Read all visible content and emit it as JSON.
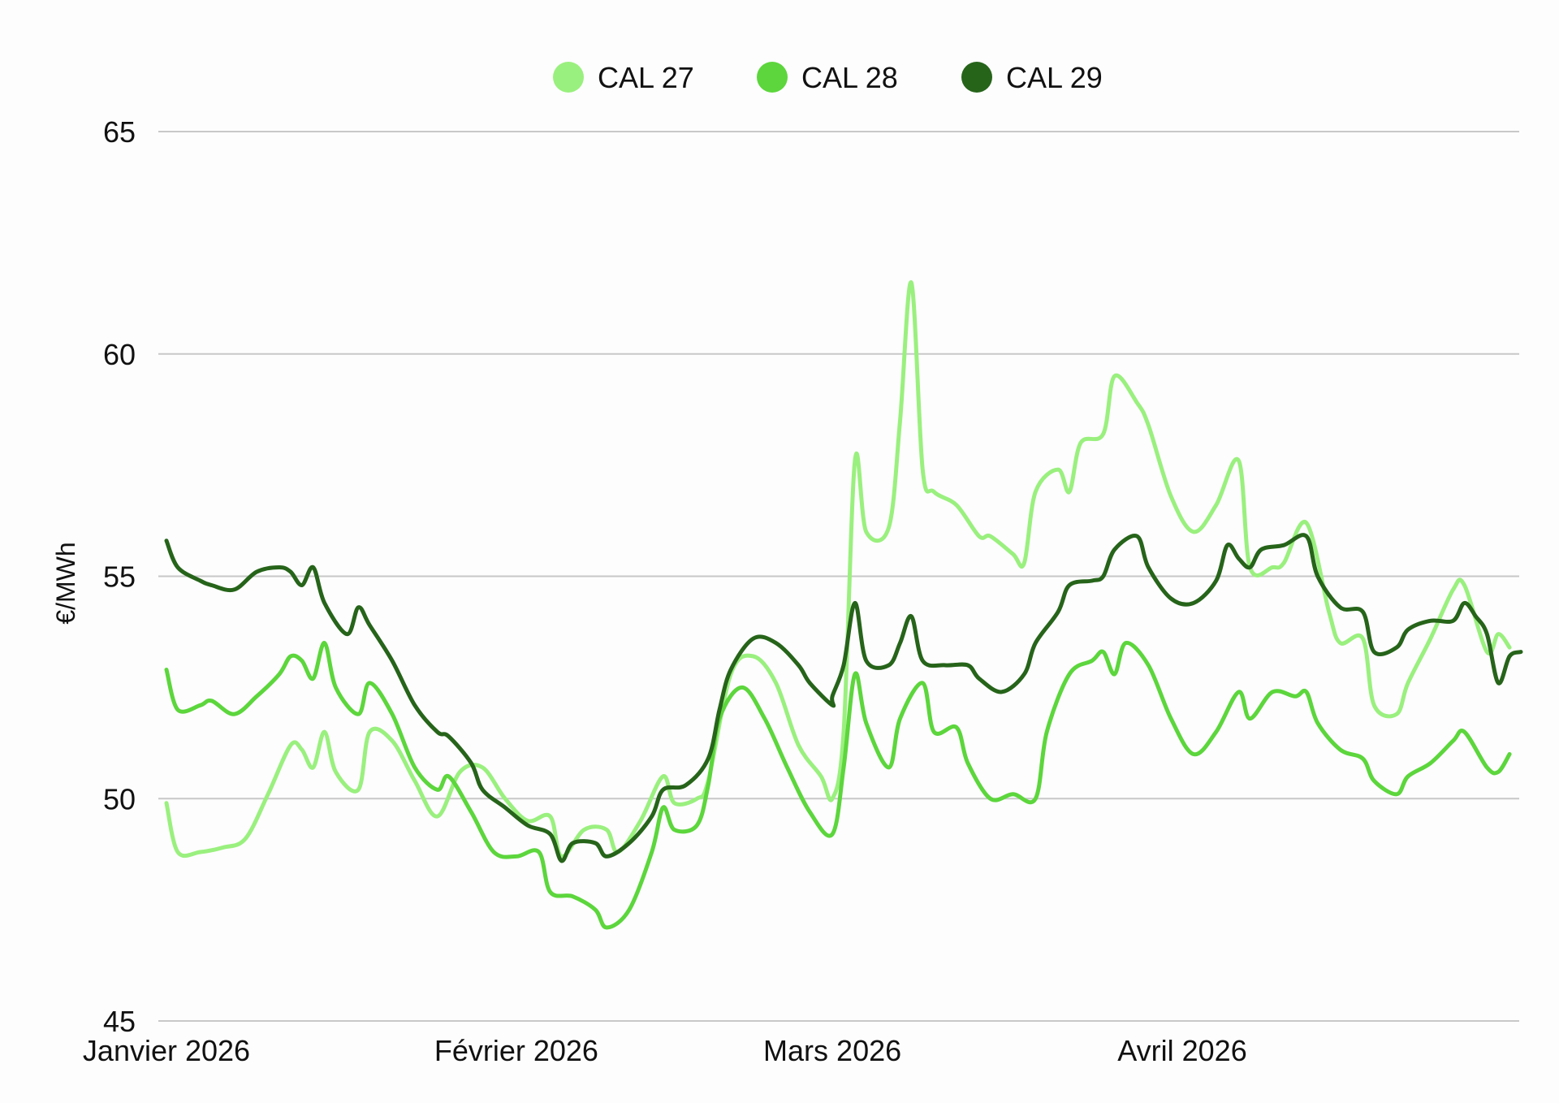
{
  "chart_data": {
    "type": "line",
    "ylabel": "€/MWh",
    "ylim": [
      45,
      65
    ],
    "yticks": [
      45,
      50,
      55,
      60,
      65
    ],
    "xlim": [
      "2026-01-01",
      "2026-04-30"
    ],
    "xticks": [
      {
        "date": "2026-01-01",
        "label": "Janvier 2026"
      },
      {
        "date": "2026-02-01",
        "label": "Février 2026"
      },
      {
        "date": "2026-03-01",
        "label": "Mars 2026"
      },
      {
        "date": "2026-04-01",
        "label": "Avril 2026"
      }
    ],
    "grid": true,
    "legend": "top-center",
    "series": [
      {
        "name": "CAL 27",
        "color": "#9af07e",
        "points": [
          [
            "2026-01-01",
            49.9
          ],
          [
            "2026-01-02",
            48.8
          ],
          [
            "2026-01-04",
            48.8
          ],
          [
            "2026-01-06",
            48.9
          ],
          [
            "2026-01-08",
            49.1
          ],
          [
            "2026-01-10",
            50.1
          ],
          [
            "2026-01-12",
            51.2
          ],
          [
            "2026-01-13",
            51.1
          ],
          [
            "2026-01-14",
            50.7
          ],
          [
            "2026-01-15",
            51.5
          ],
          [
            "2026-01-16",
            50.6
          ],
          [
            "2026-01-18",
            50.2
          ],
          [
            "2026-01-19",
            51.5
          ],
          [
            "2026-01-21",
            51.3
          ],
          [
            "2026-01-23",
            50.4
          ],
          [
            "2026-01-25",
            49.6
          ],
          [
            "2026-01-27",
            50.6
          ],
          [
            "2026-01-29",
            50.7
          ],
          [
            "2026-01-31",
            50.0
          ],
          [
            "2026-02-02",
            49.5
          ],
          [
            "2026-02-04",
            49.6
          ],
          [
            "2026-02-05",
            48.7
          ],
          [
            "2026-02-07",
            49.3
          ],
          [
            "2026-02-09",
            49.3
          ],
          [
            "2026-02-10",
            48.8
          ],
          [
            "2026-02-12",
            49.5
          ],
          [
            "2026-02-14",
            50.5
          ],
          [
            "2026-02-15",
            49.9
          ],
          [
            "2026-02-17",
            50.0
          ],
          [
            "2026-02-18",
            50.4
          ],
          [
            "2026-02-20",
            52.8
          ],
          [
            "2026-02-22",
            53.2
          ],
          [
            "2026-02-24",
            52.6
          ],
          [
            "2026-02-26",
            51.2
          ],
          [
            "2026-02-28",
            50.5
          ],
          [
            "2026-03-01",
            50.0
          ],
          [
            "2026-03-02",
            51.5
          ],
          [
            "2026-03-03",
            57.6
          ],
          [
            "2026-03-04",
            56.0
          ],
          [
            "2026-03-06",
            56.1
          ],
          [
            "2026-03-07",
            58.5
          ],
          [
            "2026-03-08",
            61.6
          ],
          [
            "2026-03-09",
            57.4
          ],
          [
            "2026-03-10",
            56.9
          ],
          [
            "2026-03-12",
            56.6
          ],
          [
            "2026-03-14",
            55.9
          ],
          [
            "2026-03-15",
            55.9
          ],
          [
            "2026-03-17",
            55.5
          ],
          [
            "2026-03-18",
            55.3
          ],
          [
            "2026-03-19",
            56.9
          ],
          [
            "2026-03-21",
            57.4
          ],
          [
            "2026-03-22",
            56.9
          ],
          [
            "2026-03-23",
            58.0
          ],
          [
            "2026-03-25",
            58.2
          ],
          [
            "2026-03-26",
            59.5
          ],
          [
            "2026-03-28",
            58.9
          ],
          [
            "2026-03-29",
            58.4
          ],
          [
            "2026-03-31",
            56.8
          ],
          [
            "2026-04-02",
            56.0
          ],
          [
            "2026-04-04",
            56.6
          ],
          [
            "2026-04-06",
            57.6
          ],
          [
            "2026-04-07",
            55.2
          ],
          [
            "2026-04-09",
            55.2
          ],
          [
            "2026-04-10",
            55.3
          ],
          [
            "2026-04-12",
            56.2
          ],
          [
            "2026-04-14",
            54.2
          ],
          [
            "2026-04-15",
            53.5
          ],
          [
            "2026-04-17",
            53.6
          ],
          [
            "2026-04-18",
            52.1
          ],
          [
            "2026-04-20",
            51.9
          ],
          [
            "2026-04-21",
            52.6
          ],
          [
            "2026-04-23",
            53.6
          ],
          [
            "2026-04-25",
            54.7
          ],
          [
            "2026-04-26",
            54.8
          ],
          [
            "2026-04-28",
            53.3
          ],
          [
            "2026-04-29",
            53.7
          ],
          [
            "2026-04-30",
            53.4
          ]
        ]
      },
      {
        "name": "CAL 28",
        "color": "#5cd63c",
        "points": [
          [
            "2026-01-01",
            52.9
          ],
          [
            "2026-01-02",
            52.0
          ],
          [
            "2026-01-04",
            52.1
          ],
          [
            "2026-01-05",
            52.2
          ],
          [
            "2026-01-07",
            51.9
          ],
          [
            "2026-01-09",
            52.3
          ],
          [
            "2026-01-11",
            52.8
          ],
          [
            "2026-01-12",
            53.2
          ],
          [
            "2026-01-13",
            53.1
          ],
          [
            "2026-01-14",
            52.7
          ],
          [
            "2026-01-15",
            53.5
          ],
          [
            "2026-01-16",
            52.5
          ],
          [
            "2026-01-18",
            51.9
          ],
          [
            "2026-01-19",
            52.6
          ],
          [
            "2026-01-21",
            51.9
          ],
          [
            "2026-01-23",
            50.7
          ],
          [
            "2026-01-25",
            50.2
          ],
          [
            "2026-01-26",
            50.5
          ],
          [
            "2026-01-28",
            49.7
          ],
          [
            "2026-01-30",
            48.8
          ],
          [
            "2026-02-01",
            48.7
          ],
          [
            "2026-02-03",
            48.8
          ],
          [
            "2026-02-04",
            47.9
          ],
          [
            "2026-02-06",
            47.8
          ],
          [
            "2026-02-08",
            47.5
          ],
          [
            "2026-02-09",
            47.1
          ],
          [
            "2026-02-11",
            47.5
          ],
          [
            "2026-02-13",
            48.8
          ],
          [
            "2026-02-14",
            49.8
          ],
          [
            "2026-02-15",
            49.3
          ],
          [
            "2026-02-17",
            49.4
          ],
          [
            "2026-02-18",
            50.3
          ],
          [
            "2026-02-19",
            51.8
          ],
          [
            "2026-02-21",
            52.5
          ],
          [
            "2026-02-23",
            51.8
          ],
          [
            "2026-02-25",
            50.7
          ],
          [
            "2026-02-27",
            49.7
          ],
          [
            "2026-03-01",
            49.2
          ],
          [
            "2026-03-02",
            50.7
          ],
          [
            "2026-03-03",
            52.8
          ],
          [
            "2026-03-04",
            51.7
          ],
          [
            "2026-03-06",
            50.7
          ],
          [
            "2026-03-07",
            51.8
          ],
          [
            "2026-03-09",
            52.6
          ],
          [
            "2026-03-10",
            51.5
          ],
          [
            "2026-03-12",
            51.6
          ],
          [
            "2026-03-13",
            50.8
          ],
          [
            "2026-03-15",
            50.0
          ],
          [
            "2026-03-17",
            50.1
          ],
          [
            "2026-03-19",
            50.0
          ],
          [
            "2026-03-20",
            51.5
          ],
          [
            "2026-03-22",
            52.8
          ],
          [
            "2026-03-24",
            53.1
          ],
          [
            "2026-03-25",
            53.3
          ],
          [
            "2026-03-26",
            52.8
          ],
          [
            "2026-03-27",
            53.5
          ],
          [
            "2026-03-29",
            53.0
          ],
          [
            "2026-03-31",
            51.8
          ],
          [
            "2026-04-02",
            51.0
          ],
          [
            "2026-04-04",
            51.5
          ],
          [
            "2026-04-06",
            52.4
          ],
          [
            "2026-04-07",
            51.8
          ],
          [
            "2026-04-09",
            52.4
          ],
          [
            "2026-04-11",
            52.3
          ],
          [
            "2026-04-12",
            52.4
          ],
          [
            "2026-04-13",
            51.7
          ],
          [
            "2026-04-15",
            51.1
          ],
          [
            "2026-04-17",
            50.9
          ],
          [
            "2026-04-18",
            50.4
          ],
          [
            "2026-04-20",
            50.1
          ],
          [
            "2026-04-21",
            50.5
          ],
          [
            "2026-04-23",
            50.8
          ],
          [
            "2026-04-25",
            51.3
          ],
          [
            "2026-04-26",
            51.5
          ],
          [
            "2026-04-28",
            50.7
          ],
          [
            "2026-04-29",
            50.6
          ],
          [
            "2026-04-30",
            51.0
          ]
        ]
      },
      {
        "name": "CAL 29",
        "color": "#26641a",
        "points": [
          [
            "2026-01-01",
            55.8
          ],
          [
            "2026-01-02",
            55.2
          ],
          [
            "2026-01-04",
            54.9
          ],
          [
            "2026-01-05",
            54.8
          ],
          [
            "2026-01-07",
            54.7
          ],
          [
            "2026-01-09",
            55.1
          ],
          [
            "2026-01-11",
            55.2
          ],
          [
            "2026-01-12",
            55.1
          ],
          [
            "2026-01-13",
            54.8
          ],
          [
            "2026-01-14",
            55.2
          ],
          [
            "2026-01-15",
            54.4
          ],
          [
            "2026-01-17",
            53.7
          ],
          [
            "2026-01-18",
            54.3
          ],
          [
            "2026-01-19",
            53.9
          ],
          [
            "2026-01-21",
            53.1
          ],
          [
            "2026-01-23",
            52.1
          ],
          [
            "2026-01-25",
            51.5
          ],
          [
            "2026-01-26",
            51.4
          ],
          [
            "2026-01-28",
            50.8
          ],
          [
            "2026-01-29",
            50.2
          ],
          [
            "2026-01-31",
            49.8
          ],
          [
            "2026-02-02",
            49.4
          ],
          [
            "2026-02-04",
            49.2
          ],
          [
            "2026-02-05",
            48.6
          ],
          [
            "2026-02-06",
            49.0
          ],
          [
            "2026-02-08",
            49.0
          ],
          [
            "2026-02-09",
            48.7
          ],
          [
            "2026-02-11",
            49.0
          ],
          [
            "2026-02-13",
            49.6
          ],
          [
            "2026-02-14",
            50.2
          ],
          [
            "2026-02-16",
            50.3
          ],
          [
            "2026-02-18",
            50.9
          ],
          [
            "2026-02-19",
            52.0
          ],
          [
            "2026-02-20",
            52.9
          ],
          [
            "2026-02-22",
            53.6
          ],
          [
            "2026-02-24",
            53.5
          ],
          [
            "2026-02-26",
            53.0
          ],
          [
            "2026-02-27",
            52.6
          ],
          [
            "2026-02-29",
            52.1
          ],
          [
            "2026-03-01",
            52.3
          ],
          [
            "2026-03-02",
            53.0
          ],
          [
            "2026-03-03",
            54.4
          ],
          [
            "2026-03-04",
            53.1
          ],
          [
            "2026-03-06",
            53.0
          ],
          [
            "2026-03-07",
            53.5
          ],
          [
            "2026-03-08",
            54.1
          ],
          [
            "2026-03-09",
            53.1
          ],
          [
            "2026-03-11",
            53.0
          ],
          [
            "2026-03-13",
            53.0
          ],
          [
            "2026-03-14",
            52.7
          ],
          [
            "2026-03-16",
            52.4
          ],
          [
            "2026-03-18",
            52.8
          ],
          [
            "2026-03-19",
            53.5
          ],
          [
            "2026-03-21",
            54.2
          ],
          [
            "2026-03-22",
            54.8
          ],
          [
            "2026-03-24",
            54.9
          ],
          [
            "2026-03-25",
            55.0
          ],
          [
            "2026-03-26",
            55.6
          ],
          [
            "2026-03-28",
            55.9
          ],
          [
            "2026-03-29",
            55.2
          ],
          [
            "2026-03-31",
            54.5
          ],
          [
            "2026-04-02",
            54.4
          ],
          [
            "2026-04-04",
            54.9
          ],
          [
            "2026-04-05",
            55.7
          ],
          [
            "2026-04-06",
            55.4
          ],
          [
            "2026-04-07",
            55.2
          ],
          [
            "2026-04-08",
            55.6
          ],
          [
            "2026-04-10",
            55.7
          ],
          [
            "2026-04-12",
            55.9
          ],
          [
            "2026-04-13",
            55.0
          ],
          [
            "2026-04-15",
            54.3
          ],
          [
            "2026-04-17",
            54.2
          ],
          [
            "2026-04-18",
            53.3
          ],
          [
            "2026-04-20",
            53.4
          ],
          [
            "2026-04-21",
            53.8
          ],
          [
            "2026-04-23",
            54.0
          ],
          [
            "2026-04-25",
            54.0
          ],
          [
            "2026-04-26",
            54.4
          ],
          [
            "2026-04-27",
            54.1
          ],
          [
            "2026-04-28",
            53.7
          ],
          [
            "2026-04-29",
            52.6
          ],
          [
            "2026-04-30",
            53.2
          ],
          [
            "2026-05-01",
            53.3
          ]
        ]
      }
    ]
  }
}
